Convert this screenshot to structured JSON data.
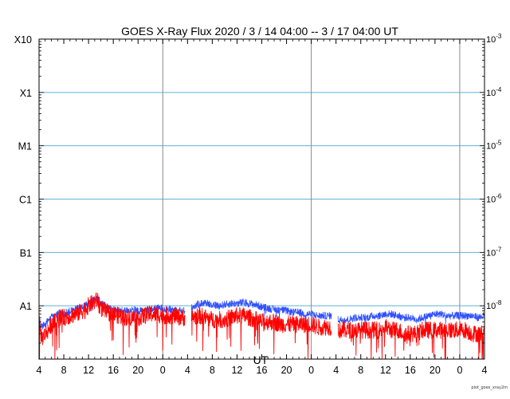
{
  "chart_data": {
    "type": "line",
    "title": "GOES X-Ray Flux   2020  /  3  /  14    04:00 --  3  /  17    04:00    UT",
    "xlabel": "UT",
    "ylabel": "",
    "y_scale": "log",
    "x_range_hours": [
      0,
      72
    ],
    "ylim": [
      1e-09,
      0.001
    ],
    "x_tick_hours": [
      0,
      4,
      8,
      12,
      16,
      20,
      24,
      28,
      32,
      36,
      40,
      44,
      48,
      52,
      56,
      60,
      64,
      68,
      72
    ],
    "x_tick_labels": [
      "4",
      "8",
      "12",
      "16",
      "20",
      "0",
      "4",
      "8",
      "12",
      "16",
      "20",
      "0",
      "4",
      "8",
      "12",
      "16",
      "20",
      "0",
      "4"
    ],
    "day_boundaries_hours": [
      20,
      44,
      68
    ],
    "left_axis": {
      "tick_labels": [
        "X10",
        "X1",
        "M1",
        "C1",
        "B1",
        "A1"
      ],
      "tick_values": [
        0.001,
        0.0001,
        1e-05,
        1e-06,
        1e-07,
        1e-08
      ]
    },
    "right_axis": {
      "tick_labels": [
        {
          "base": "10",
          "exp": "-3"
        },
        {
          "base": "10",
          "exp": "-4"
        },
        {
          "base": "10",
          "exp": "-5"
        },
        {
          "base": "10",
          "exp": "-6"
        },
        {
          "base": "10",
          "exp": "-7"
        },
        {
          "base": "10",
          "exp": "-8"
        }
      ],
      "tick_values": [
        0.001,
        0.0001,
        1e-05,
        1e-06,
        1e-07,
        1e-08
      ]
    },
    "grid": "horizontal lines at class thresholds, vertical lines at day boundaries",
    "series": [
      {
        "color": "#3050ff",
        "description": "long channel",
        "gaps_hours": [
          [
            23.6,
            24.6
          ],
          [
            47.3,
            48.3
          ]
        ],
        "x": [
          0,
          0.5,
          1,
          1.5,
          2,
          2.5,
          3,
          3.5,
          4,
          5,
          6,
          7,
          8,
          9,
          9.5,
          10,
          11,
          12,
          13,
          14,
          15,
          16,
          17,
          18,
          19,
          20,
          21,
          22,
          23,
          23.5,
          24.7,
          26,
          27,
          28,
          29,
          30,
          31,
          32,
          33,
          34,
          35,
          36,
          37,
          38,
          39,
          40,
          41,
          42,
          43,
          44,
          45,
          46,
          47,
          47.2,
          48.4,
          49,
          50,
          51,
          52,
          53,
          54,
          55,
          56,
          57,
          58,
          59,
          60,
          61,
          62,
          63,
          64,
          65,
          66,
          67,
          68,
          69,
          70,
          71,
          72
        ],
        "y": [
          6e-09,
          4e-09,
          4.5e-09,
          5.5e-09,
          6.5e-09,
          6e-09,
          7e-09,
          7.5e-09,
          7e-09,
          8e-09,
          8.5e-09,
          9.5e-09,
          1.1e-08,
          1.3e-08,
          1.4e-08,
          1.1e-08,
          9.5e-09,
          8.5e-09,
          8e-09,
          8e-09,
          8.5e-09,
          8e-09,
          8e-09,
          8.5e-09,
          9e-09,
          9e-09,
          8.5e-09,
          8.5e-09,
          8e-09,
          8e-09,
          9.5e-09,
          1.1e-08,
          1.15e-08,
          1.05e-08,
          1e-08,
          1.05e-08,
          1.1e-08,
          1.1e-08,
          1.15e-08,
          1.1e-08,
          1.05e-08,
          9.5e-09,
          9e-09,
          8.5e-09,
          8.5e-09,
          8e-09,
          7.5e-09,
          7.5e-09,
          7e-09,
          7e-09,
          6.5e-09,
          6.5e-09,
          6.5e-09,
          6.5e-09,
          5.5e-09,
          5.5e-09,
          5.5e-09,
          6e-09,
          6e-09,
          6e-09,
          6.5e-09,
          6.5e-09,
          7e-09,
          7e-09,
          6.5e-09,
          6e-09,
          6e-09,
          5.5e-09,
          6e-09,
          6.5e-09,
          7e-09,
          7e-09,
          6.5e-09,
          6.5e-09,
          6.5e-09,
          6.5e-09,
          6.5e-09,
          6e-09,
          6.5e-09
        ]
      },
      {
        "color": "#ff0000",
        "description": "short channel",
        "gaps_hours": [
          [
            23.6,
            24.6
          ],
          [
            47.3,
            48.3
          ]
        ],
        "x": [
          0,
          0.5,
          1,
          1.5,
          2,
          2.5,
          3,
          3.5,
          4,
          5,
          6,
          7,
          8,
          9,
          9.5,
          10,
          11,
          12,
          13,
          14,
          15,
          16,
          17,
          18,
          19,
          20,
          21,
          22,
          23,
          23.5,
          24.7,
          26,
          27,
          28,
          29,
          30,
          31,
          32,
          33,
          34,
          35,
          36,
          37,
          38,
          39,
          40,
          41,
          42,
          43,
          44,
          45,
          46,
          47,
          47.2,
          48.4,
          49,
          50,
          51,
          52,
          53,
          54,
          55,
          56,
          57,
          58,
          59,
          60,
          61,
          62,
          63,
          64,
          65,
          66,
          67,
          68,
          69,
          70,
          71,
          72
        ],
        "y": [
          4e-09,
          2.5e-09,
          3e-09,
          3.5e-09,
          4.5e-09,
          5e-09,
          5.5e-09,
          6e-09,
          6e-09,
          6.5e-09,
          7e-09,
          8e-09,
          1e-08,
          1.2e-08,
          1.3e-08,
          9e-09,
          7.5e-09,
          7e-09,
          6.5e-09,
          6e-09,
          6e-09,
          6e-09,
          6.5e-09,
          7e-09,
          7e-09,
          6.5e-09,
          6.5e-09,
          6.5e-09,
          6e-09,
          6e-09,
          6e-09,
          6.5e-09,
          6e-09,
          5.5e-09,
          5.5e-09,
          5.5e-09,
          6e-09,
          6.5e-09,
          6.5e-09,
          6e-09,
          5.5e-09,
          5e-09,
          5e-09,
          5e-09,
          4.5e-09,
          4.5e-09,
          4.5e-09,
          4.5e-09,
          4.5e-09,
          4.5e-09,
          4e-09,
          4e-09,
          4e-09,
          4e-09,
          3.5e-09,
          3.5e-09,
          3.5e-09,
          3.5e-09,
          3.5e-09,
          3.5e-09,
          3.5e-09,
          3.5e-09,
          4e-09,
          3.5e-09,
          3.5e-09,
          3e-09,
          3e-09,
          3e-09,
          3.5e-09,
          3.5e-09,
          3.5e-09,
          3.5e-09,
          3.5e-09,
          3.5e-09,
          3.5e-09,
          3.5e-09,
          3e-09,
          3e-09,
          3e-09
        ]
      }
    ]
  },
  "footer": {
    "credit": "plot_goes_xray2m"
  }
}
